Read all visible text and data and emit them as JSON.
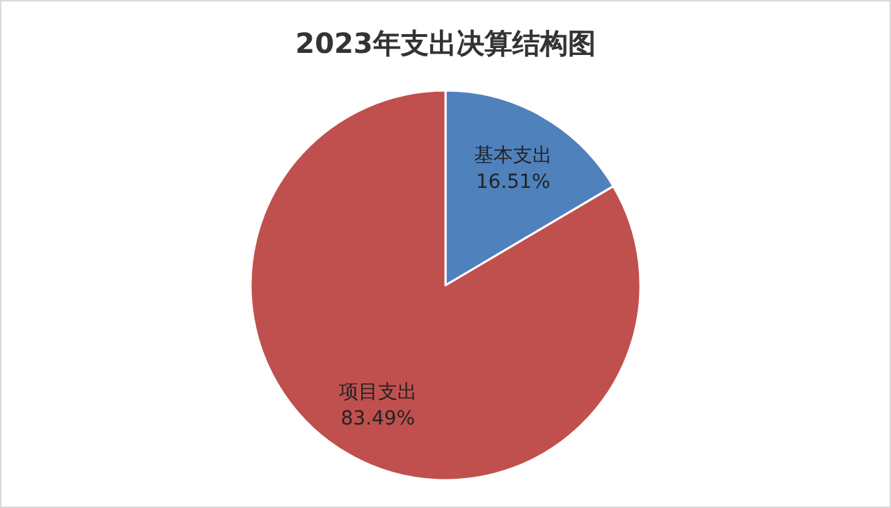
{
  "chart_data": {
    "type": "pie",
    "title": "2023年支出决算结构图",
    "categories": [
      "基本支出",
      "项目支出"
    ],
    "values": [
      16.51,
      83.49
    ],
    "colors": [
      "#4f81bd",
      "#c0504d"
    ],
    "value_labels": [
      "16.51%",
      "83.49%"
    ]
  }
}
